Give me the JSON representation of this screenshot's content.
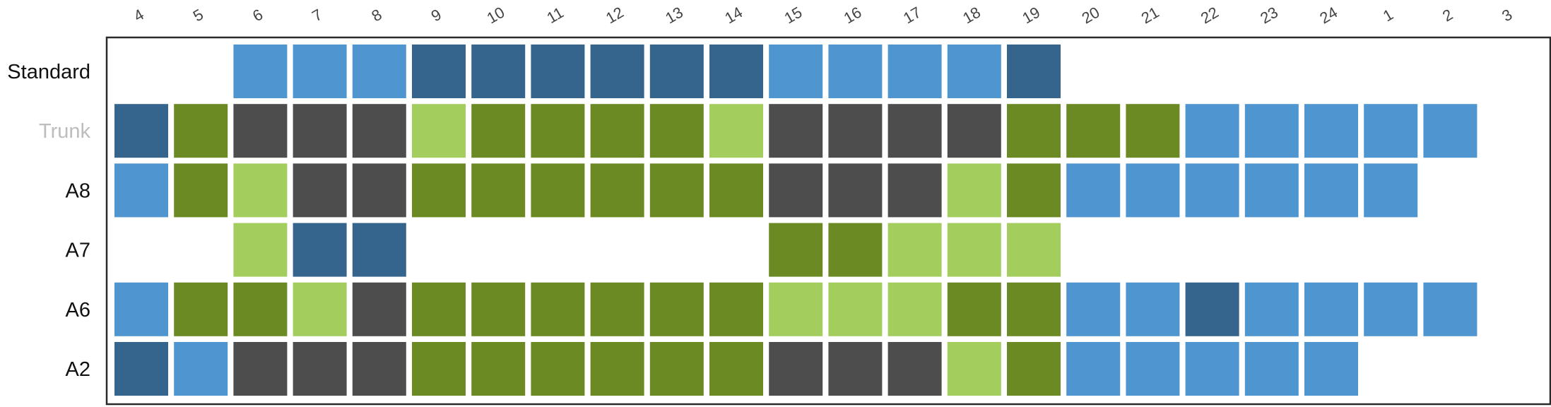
{
  "colors": {
    "dark_blue": "#35648c",
    "mid_blue": "#4f95cf",
    "dark_green": "#6b8a23",
    "light_green": "#a3cd5d",
    "dark_gray": "#4d4d4d",
    "grid_frame": "#2a2a2a",
    "label_black": "#111111",
    "label_muted": "#bdbdbd",
    "tick_text": "#444444"
  },
  "chart_data": {
    "type": "heatmap",
    "x_labels": [
      "4",
      "5",
      "6",
      "7",
      "8",
      "9",
      "10",
      "11",
      "12",
      "13",
      "14",
      "15",
      "16",
      "17",
      "18",
      "19",
      "20",
      "21",
      "22",
      "23",
      "24",
      "1",
      "2",
      "3"
    ],
    "rows": [
      {
        "label": "Standard",
        "muted": false,
        "cells": [
          null,
          null,
          "mid_blue",
          "mid_blue",
          "mid_blue",
          "dark_blue",
          "dark_blue",
          "dark_blue",
          "dark_blue",
          "dark_blue",
          "dark_blue",
          "mid_blue",
          "mid_blue",
          "mid_blue",
          "mid_blue",
          "dark_blue",
          null,
          null,
          null,
          null,
          null,
          null,
          null,
          null
        ]
      },
      {
        "label": "Trunk",
        "muted": true,
        "cells": [
          "dark_blue",
          "dark_green",
          "dark_gray",
          "dark_gray",
          "dark_gray",
          "light_green",
          "dark_green",
          "dark_green",
          "dark_green",
          "dark_green",
          "light_green",
          "dark_gray",
          "dark_gray",
          "dark_gray",
          "dark_gray",
          "dark_green",
          "dark_green",
          "dark_green",
          "mid_blue",
          "mid_blue",
          "mid_blue",
          "mid_blue",
          "mid_blue",
          null
        ]
      },
      {
        "label": "A8",
        "muted": false,
        "cells": [
          "mid_blue",
          "dark_green",
          "light_green",
          "dark_gray",
          "dark_gray",
          "dark_green",
          "dark_green",
          "dark_green",
          "dark_green",
          "dark_green",
          "dark_green",
          "dark_gray",
          "dark_gray",
          "dark_gray",
          "light_green",
          "dark_green",
          "mid_blue",
          "mid_blue",
          "mid_blue",
          "mid_blue",
          "mid_blue",
          "mid_blue",
          null,
          null
        ]
      },
      {
        "label": "A7",
        "muted": false,
        "cells": [
          null,
          null,
          "light_green",
          "dark_blue",
          "dark_blue",
          null,
          null,
          null,
          null,
          null,
          null,
          "dark_green",
          "dark_green",
          "light_green",
          "light_green",
          "light_green",
          null,
          null,
          null,
          null,
          null,
          null,
          null,
          null
        ]
      },
      {
        "label": "A6",
        "muted": false,
        "cells": [
          "mid_blue",
          "dark_green",
          "dark_green",
          "light_green",
          "dark_gray",
          "dark_green",
          "dark_green",
          "dark_green",
          "dark_green",
          "dark_green",
          "dark_green",
          "light_green",
          "light_green",
          "light_green",
          "dark_green",
          "dark_green",
          "mid_blue",
          "mid_blue",
          "dark_blue",
          "mid_blue",
          "mid_blue",
          "mid_blue",
          "mid_blue",
          null
        ]
      },
      {
        "label": "A2",
        "muted": false,
        "cells": [
          "dark_blue",
          "mid_blue",
          "dark_gray",
          "dark_gray",
          "dark_gray",
          "dark_green",
          "dark_green",
          "dark_green",
          "dark_green",
          "dark_green",
          "dark_green",
          "dark_gray",
          "dark_gray",
          "dark_gray",
          "light_green",
          "dark_green",
          "mid_blue",
          "mid_blue",
          "mid_blue",
          "mid_blue",
          "mid_blue",
          null,
          null,
          null
        ]
      }
    ]
  }
}
